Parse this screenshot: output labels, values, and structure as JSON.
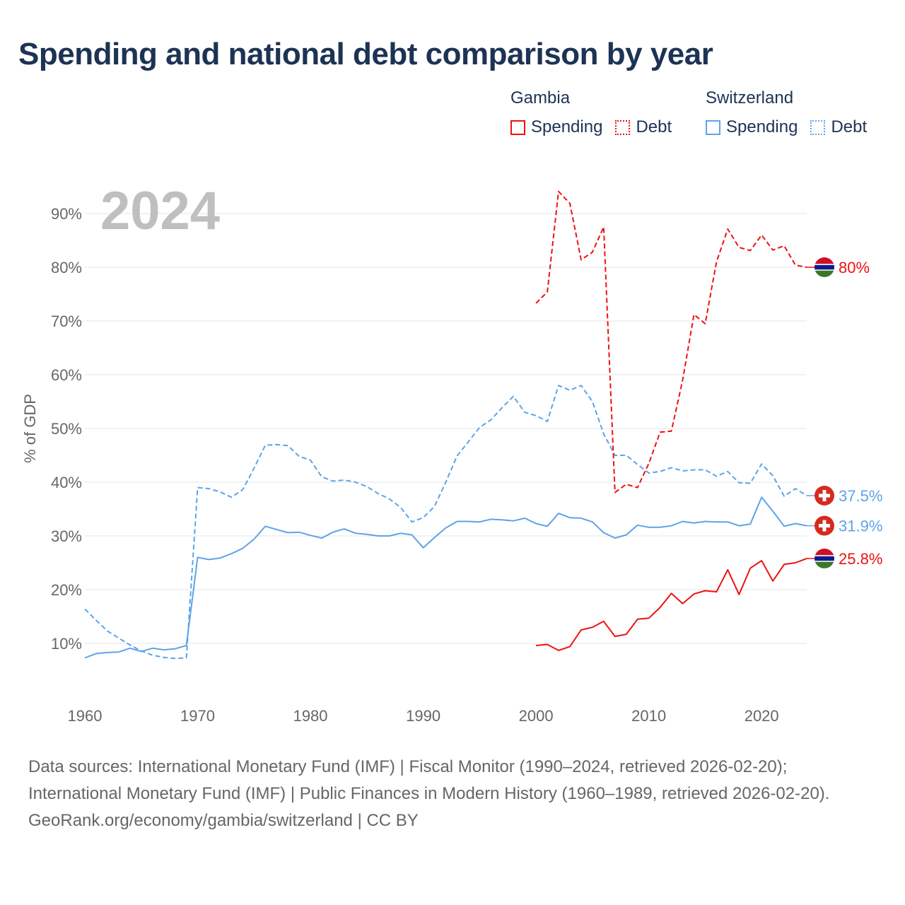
{
  "title": "Spending and national debt comparison by year",
  "legend": {
    "groups": [
      {
        "name": "Gambia",
        "items": [
          {
            "label": "Spending",
            "color": "#ee1111",
            "style": "solid"
          },
          {
            "label": "Debt",
            "color": "#ee1111",
            "style": "dotted"
          }
        ]
      },
      {
        "name": "Switzerland",
        "items": [
          {
            "label": "Spending",
            "color": "#5ea3e8",
            "style": "solid"
          },
          {
            "label": "Debt",
            "color": "#5ea3e8",
            "style": "dotted"
          }
        ]
      }
    ]
  },
  "footer": {
    "sources": "Data sources: International Monetary Fund (IMF) | Fiscal Monitor (1990–2024, retrieved 2026-02-20); International Monetary Fund (IMF) | Public Finances in Modern History (1960–1989, retrieved 2026-02-20).",
    "credit": "GeoRank.org/economy/gambia/switzerland | CC BY"
  },
  "chart_data": {
    "type": "line",
    "year_label": "2024",
    "ylabel": "% of GDP",
    "xlabel": "",
    "xlim": [
      1960,
      2024
    ],
    "ylim": [
      0,
      95
    ],
    "xticks": [
      1960,
      1970,
      1980,
      1990,
      2000,
      2010,
      2020
    ],
    "yticks": [
      10,
      20,
      30,
      40,
      50,
      60,
      70,
      80,
      90
    ],
    "ytick_labels": [
      "10%",
      "20%",
      "30%",
      "40%",
      "50%",
      "60%",
      "70%",
      "80%",
      "90%"
    ],
    "grid": true,
    "series": [
      {
        "name": "Switzerland Spending",
        "country": "Switzerland",
        "metric": "Spending",
        "color": "#5ea3e8",
        "dash": "solid",
        "end_label": "31.9%",
        "flag": "switzerland",
        "x": [
          1960,
          1961,
          1962,
          1963,
          1964,
          1965,
          1966,
          1967,
          1968,
          1969,
          1970,
          1971,
          1972,
          1973,
          1974,
          1975,
          1976,
          1977,
          1978,
          1979,
          1980,
          1981,
          1982,
          1983,
          1984,
          1985,
          1986,
          1987,
          1988,
          1989,
          1990,
          1991,
          1992,
          1993,
          1994,
          1995,
          1996,
          1997,
          1998,
          1999,
          2000,
          2001,
          2002,
          2003,
          2004,
          2005,
          2006,
          2007,
          2008,
          2009,
          2010,
          2011,
          2012,
          2013,
          2014,
          2015,
          2016,
          2017,
          2018,
          2019,
          2020,
          2021,
          2022,
          2023,
          2024
        ],
        "values": [
          7.3,
          8.1,
          8.3,
          8.4,
          9.1,
          8.5,
          9.1,
          8.8,
          9.0,
          9.6,
          26.0,
          25.6,
          25.9,
          26.7,
          27.7,
          29.4,
          31.8,
          31.2,
          30.6,
          30.7,
          30.1,
          29.6,
          30.7,
          31.3,
          30.5,
          30.3,
          30.0,
          30.0,
          30.5,
          30.2,
          27.8,
          29.7,
          31.5,
          32.7,
          32.7,
          32.6,
          33.1,
          33.0,
          32.8,
          33.3,
          32.3,
          31.8,
          34.2,
          33.4,
          33.3,
          32.6,
          30.6,
          29.6,
          30.2,
          32.0,
          31.6,
          31.6,
          31.9,
          32.7,
          32.4,
          32.7,
          32.6,
          32.6,
          31.9,
          32.2,
          37.2,
          34.6,
          31.8,
          32.3,
          31.9
        ]
      },
      {
        "name": "Switzerland Debt",
        "country": "Switzerland",
        "metric": "Debt",
        "color": "#5ea3e8",
        "dash": "dashed",
        "end_label": "37.5%",
        "flag": "switzerland",
        "x": [
          1960,
          1961,
          1962,
          1963,
          1964,
          1965,
          1966,
          1967,
          1968,
          1969,
          1970,
          1971,
          1972,
          1973,
          1974,
          1975,
          1976,
          1977,
          1978,
          1979,
          1980,
          1981,
          1982,
          1983,
          1984,
          1985,
          1986,
          1987,
          1988,
          1989,
          1990,
          1991,
          1992,
          1993,
          1994,
          1995,
          1996,
          1997,
          1998,
          1999,
          2000,
          2001,
          2002,
          2003,
          2004,
          2005,
          2006,
          2007,
          2008,
          2009,
          2010,
          2011,
          2012,
          2013,
          2014,
          2015,
          2016,
          2017,
          2018,
          2019,
          2020,
          2021,
          2022,
          2023,
          2024
        ],
        "values": [
          16.4,
          14.3,
          12.3,
          11.0,
          9.7,
          8.6,
          7.8,
          7.4,
          7.2,
          7.3,
          39.0,
          38.8,
          38.2,
          37.2,
          38.6,
          42.6,
          46.9,
          47.0,
          46.8,
          44.8,
          44.1,
          41.0,
          40.2,
          40.4,
          40.0,
          39.2,
          37.9,
          36.9,
          35.3,
          32.6,
          33.4,
          35.5,
          40.0,
          44.9,
          47.5,
          50.2,
          51.6,
          53.9,
          56.0,
          53.0,
          52.4,
          51.3,
          58.0,
          57.1,
          58.0,
          55.0,
          49.0,
          45.0,
          45.0,
          43.3,
          41.7,
          42.0,
          42.7,
          42.1,
          42.3,
          42.3,
          41.1,
          42.0,
          39.9,
          39.8,
          43.4,
          41.2,
          37.4,
          38.8,
          37.5
        ]
      },
      {
        "name": "Gambia Spending",
        "country": "Gambia",
        "metric": "Spending",
        "color": "#ee1111",
        "dash": "solid",
        "end_label": "25.8%",
        "flag": "gambia",
        "x": [
          2000,
          2001,
          2002,
          2003,
          2004,
          2005,
          2006,
          2007,
          2008,
          2009,
          2010,
          2011,
          2012,
          2013,
          2014,
          2015,
          2016,
          2017,
          2018,
          2019,
          2020,
          2021,
          2022,
          2023,
          2024
        ],
        "values": [
          9.6,
          9.8,
          8.7,
          9.4,
          12.5,
          13.0,
          14.1,
          11.3,
          11.7,
          14.5,
          14.7,
          16.7,
          19.3,
          17.4,
          19.2,
          19.8,
          19.6,
          23.7,
          19.1,
          24.0,
          25.4,
          21.6,
          24.7,
          25.0,
          25.8
        ]
      },
      {
        "name": "Gambia Debt",
        "country": "Gambia",
        "metric": "Debt",
        "color": "#ee1111",
        "dash": "dashed",
        "end_label": "80%",
        "flag": "gambia",
        "x": [
          2000,
          2001,
          2002,
          2003,
          2004,
          2005,
          2006,
          2007,
          2008,
          2009,
          2010,
          2011,
          2012,
          2013,
          2014,
          2015,
          2016,
          2017,
          2018,
          2019,
          2020,
          2021,
          2022,
          2023,
          2024
        ],
        "values": [
          73.3,
          75.4,
          94.1,
          91.9,
          81.4,
          82.8,
          87.5,
          38.1,
          39.6,
          39.0,
          43.5,
          49.3,
          49.5,
          59.0,
          71.2,
          69.5,
          81.0,
          87.1,
          83.7,
          83.1,
          86.0,
          83.2,
          84.0,
          80.4,
          80.0
        ]
      }
    ]
  }
}
